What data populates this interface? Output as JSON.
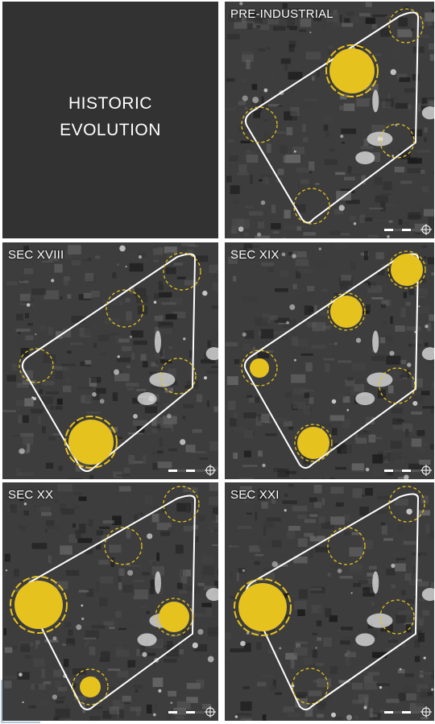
{
  "title": {
    "line1": "HISTORIC",
    "line2": "EVOLUTION",
    "background": "#323232",
    "text_color": "#ffffff"
  },
  "colors": {
    "node_fill": "#e6c21e",
    "node_ring": "#e6c21e",
    "boundary": "#ffffff",
    "map_base": "#3d3d3d"
  },
  "icons": [
    "scale-bar-icon",
    "north-arrow-icon"
  ],
  "panels": [
    {
      "label": "PRE-INDUSTRIAL",
      "period_index": 0
    },
    {
      "label": "SEC XVIII",
      "period_index": 1
    },
    {
      "label": "SEC XIX",
      "period_index": 2
    },
    {
      "label": "SEC XX",
      "period_index": 3
    },
    {
      "label": "SEC XXI",
      "period_index": 4
    }
  ]
}
